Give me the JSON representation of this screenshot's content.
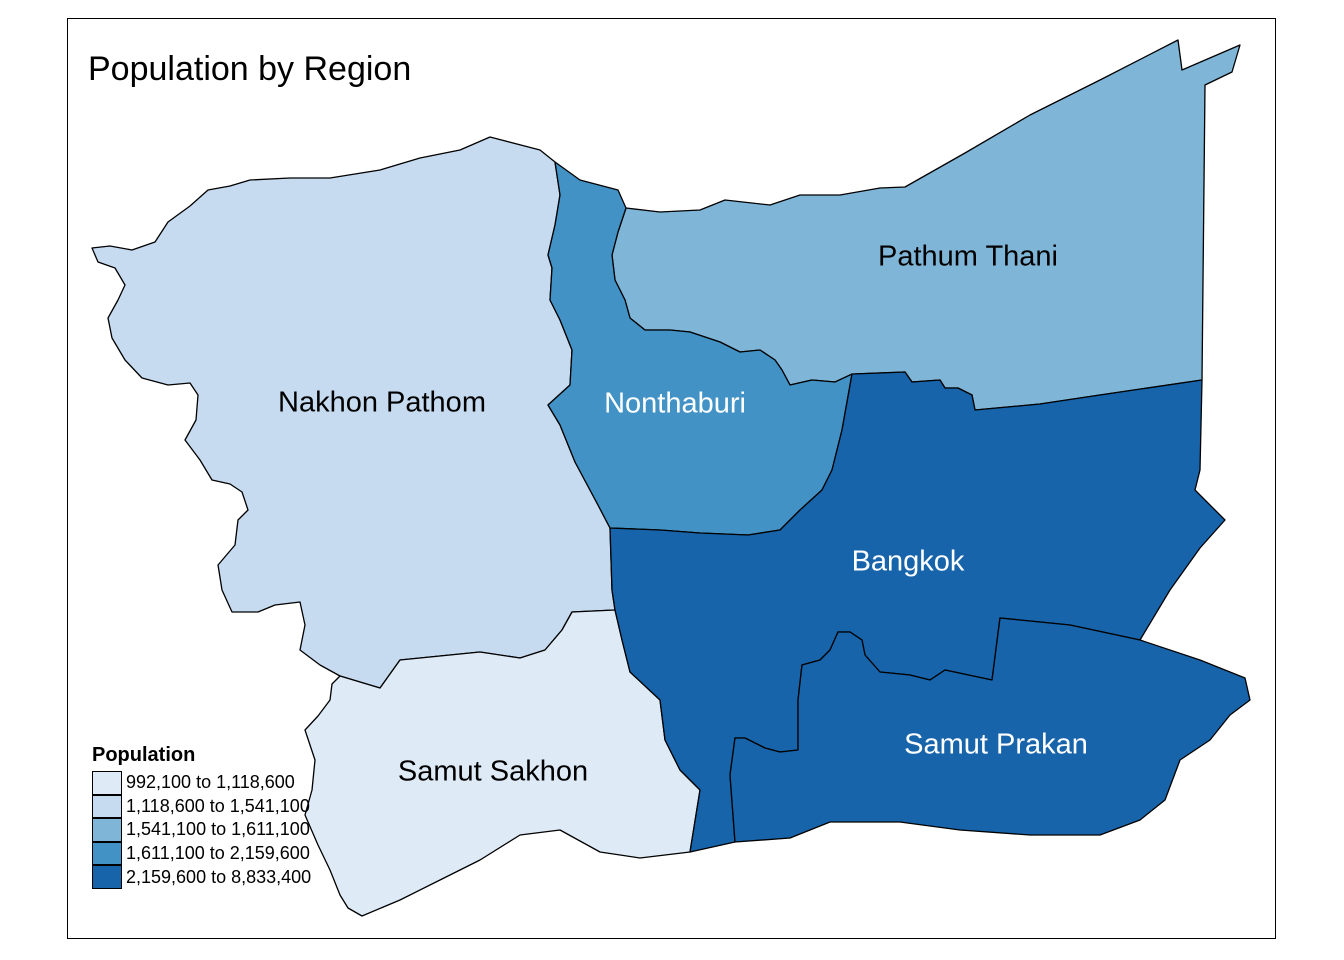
{
  "map": {
    "title": "Population by Region",
    "regions": [
      {
        "id": "nakhon-pathom",
        "name": "Nakhon Pathom",
        "fill": "#c6dbef",
        "label_color": "#000000"
      },
      {
        "id": "samut-sakhon",
        "name": "Samut Sakhon",
        "fill": "#deebf7",
        "label_color": "#000000"
      },
      {
        "id": "pathum-thani",
        "name": "Pathum Thani",
        "fill": "#7fb6d8",
        "label_color": "#000000"
      },
      {
        "id": "nonthaburi",
        "name": "Nonthaburi",
        "fill": "#4292c6",
        "label_color": "#ffffff"
      },
      {
        "id": "bangkok",
        "name": "Bangkok",
        "fill": "#1764ab",
        "label_color": "#ffffff"
      },
      {
        "id": "samut-prakan",
        "name": "Samut Prakan",
        "fill": "#1764ab",
        "label_color": "#ffffff"
      }
    ],
    "legend": {
      "title": "Population",
      "items": [
        {
          "label": "992,100 to 1,118,600",
          "color": "#deebf7"
        },
        {
          "label": "1,118,600 to 1,541,100",
          "color": "#c6dbef"
        },
        {
          "label": "1,541,100 to 1,611,100",
          "color": "#7fb6d8"
        },
        {
          "label": "1,611,100 to 2,159,600",
          "color": "#4292c6"
        },
        {
          "label": "2,159,600 to 8,833,400",
          "color": "#1764ab"
        }
      ]
    }
  }
}
